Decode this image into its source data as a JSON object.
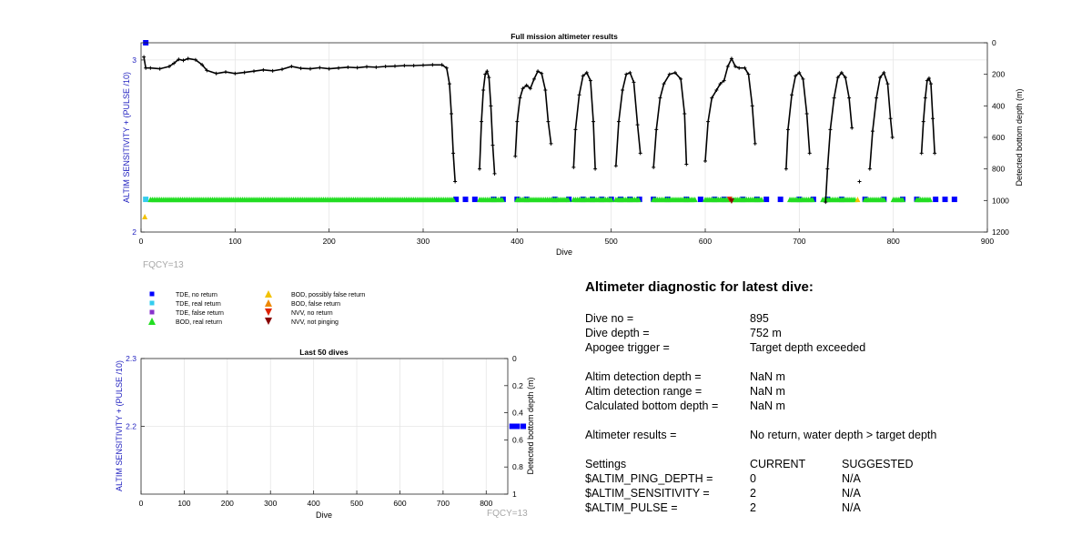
{
  "charts": {
    "main": {
      "title": "Full mission altimeter results",
      "xlabel": "Dive",
      "ylabel_left": "ALTIM SENSITIVITY + (PULSE /10)",
      "ylabel_right": "Detected bottom depth (m)",
      "xticks": [
        "0",
        "100",
        "200",
        "300",
        "400",
        "500",
        "600",
        "700",
        "800",
        "900"
      ],
      "yticks_left": [
        "2",
        "3"
      ],
      "yticks_right": [
        "0",
        "200",
        "400",
        "600",
        "800",
        "1000",
        "1200"
      ],
      "fqcy": "FQCY=13"
    },
    "last50": {
      "title": "Last 50 dives",
      "xlabel": "Dive",
      "ylabel_left": "ALTIM SENSITIVITY + (PULSE /10)",
      "ylabel_right": "Detected bottom depth (m)",
      "xticks": [
        "0",
        "100",
        "200",
        "300",
        "400",
        "500",
        "600",
        "700",
        "800"
      ],
      "yticks_left": [
        "2.2",
        "2.3"
      ],
      "yticks_right": [
        "0",
        "0.2",
        "0.4",
        "0.6",
        "0.8",
        "1"
      ],
      "fqcy": "FQCY=13"
    }
  },
  "legend": [
    {
      "label": "TDE, no return",
      "marker": "square",
      "color": "#0000ff"
    },
    {
      "label": "TDE, real return",
      "marker": "square",
      "color": "#33ccee"
    },
    {
      "label": "TDE, false return",
      "marker": "square",
      "color": "#8833cc"
    },
    {
      "label": "BOD, real return",
      "marker": "triangle-up",
      "color": "#22dd22"
    },
    {
      "label": "BOD, possibly false return",
      "marker": "triangle-up",
      "color": "#f2c200"
    },
    {
      "label": "BOD, false return",
      "marker": "triangle-up",
      "color": "#ee8800"
    },
    {
      "label": "NVV, no return",
      "marker": "triangle-down",
      "color": "#dd2200"
    },
    {
      "label": "NVV, not pinging",
      "marker": "triangle-down",
      "color": "#880000"
    }
  ],
  "chart_data": [
    {
      "type": "scatter",
      "title": "Full mission altimeter results",
      "xlabel": "Dive",
      "ylabel": "ALTIM SENSITIVITY + (PULSE /10)",
      "y2label": "Detected bottom depth (m)",
      "xlim": [
        0,
        900
      ],
      "ylim": [
        2,
        3.1
      ],
      "y2lim": [
        0,
        1200
      ],
      "y2_reversed": true,
      "grid": true,
      "series": [
        {
          "name": "TDE, no return",
          "axis": "left",
          "color": "#0000ff",
          "points": [
            [
              5,
              3.1
            ],
            [
              335,
              2.19
            ],
            [
              345,
              2.19
            ],
            [
              355,
              2.19
            ],
            [
              375,
              2.19
            ],
            [
              385,
              2.19
            ],
            [
              400,
              2.19
            ],
            [
              410,
              2.19
            ],
            [
              440,
              2.19
            ],
            [
              455,
              2.19
            ],
            [
              470,
              2.19
            ],
            [
              480,
              2.19
            ],
            [
              490,
              2.19
            ],
            [
              500,
              2.19
            ],
            [
              510,
              2.19
            ],
            [
              520,
              2.19
            ],
            [
              530,
              2.19
            ],
            [
              545,
              2.19
            ],
            [
              560,
              2.19
            ],
            [
              580,
              2.19
            ],
            [
              595,
              2.19
            ],
            [
              610,
              2.19
            ],
            [
              620,
              2.19
            ],
            [
              640,
              2.19
            ],
            [
              655,
              2.19
            ],
            [
              665,
              2.19
            ],
            [
              680,
              2.19
            ],
            [
              700,
              2.19
            ],
            [
              715,
              2.19
            ],
            [
              730,
              2.19
            ],
            [
              745,
              2.19
            ],
            [
              770,
              2.19
            ],
            [
              790,
              2.19
            ],
            [
              810,
              2.19
            ],
            [
              825,
              2.19
            ],
            [
              845,
              2.19
            ],
            [
              855,
              2.19
            ],
            [
              865,
              2.19
            ]
          ]
        },
        {
          "name": "TDE, real return",
          "axis": "left",
          "color": "#33ccee",
          "points": [
            [
              5,
              2.19
            ]
          ]
        },
        {
          "name": "BOD, real return",
          "axis": "left",
          "color": "#22dd22",
          "segments": [
            [
              10,
              332
            ],
            [
              360,
              385
            ],
            [
              400,
              455
            ],
            [
              460,
              500
            ],
            [
              505,
              530
            ],
            [
              545,
              590
            ],
            [
              600,
              660
            ],
            [
              690,
              715
            ],
            [
              725,
              760
            ],
            [
              770,
              790
            ],
            [
              800,
              810
            ],
            [
              825,
              840
            ]
          ]
        },
        {
          "name": "BOD, possibly false return",
          "axis": "left",
          "color": "#f2c200",
          "points": [
            [
              4,
              2.09
            ],
            [
              762,
              2.19
            ]
          ]
        },
        {
          "name": "NVV, no return",
          "axis": "left",
          "color": "#dd2200",
          "points": [
            [
              626,
              2.19
            ]
          ]
        },
        {
          "name": "NVV, not pinging",
          "axis": "left",
          "color": "#880000",
          "points": [
            [
              628,
              2.18
            ]
          ]
        },
        {
          "name": "Detected bottom depth",
          "axis": "right",
          "color": "#000000",
          "segments": [
            [
              [
                3,
                90
              ],
              [
                5,
                160
              ],
              [
                10,
                160
              ],
              [
                20,
                165
              ],
              [
                30,
                150
              ],
              [
                35,
                130
              ],
              [
                40,
                105
              ],
              [
                45,
                112
              ],
              [
                50,
                100
              ],
              [
                58,
                108
              ],
              [
                65,
                140
              ],
              [
                70,
                175
              ],
              [
                80,
                195
              ],
              [
                90,
                185
              ],
              [
                100,
                195
              ],
              [
                110,
                188
              ],
              [
                120,
                180
              ],
              [
                130,
                172
              ],
              [
                140,
                178
              ],
              [
                150,
                168
              ],
              [
                160,
                150
              ],
              [
                170,
                162
              ],
              [
                180,
                165
              ],
              [
                190,
                158
              ],
              [
                200,
                165
              ],
              [
                210,
                160
              ],
              [
                220,
                155
              ],
              [
                230,
                158
              ],
              [
                240,
                152
              ],
              [
                250,
                155
              ],
              [
                260,
                150
              ],
              [
                270,
                148
              ],
              [
                280,
                145
              ],
              [
                290,
                145
              ],
              [
                300,
                142
              ],
              [
                310,
                140
              ],
              [
                320,
                140
              ],
              [
                325,
                160
              ],
              [
                328,
                260
              ],
              [
                330,
                450
              ],
              [
                332,
                700
              ],
              [
                334,
                880
              ]
            ],
            [
              [
                360,
                800
              ],
              [
                362,
                500
              ],
              [
                364,
                300
              ],
              [
                366,
                200
              ],
              [
                368,
                180
              ],
              [
                370,
                220
              ],
              [
                372,
                400
              ],
              [
                374,
                650
              ],
              [
                376,
                830
              ]
            ],
            [
              [
                398,
                720
              ],
              [
                400,
                500
              ],
              [
                403,
                350
              ],
              [
                406,
                290
              ],
              [
                410,
                270
              ],
              [
                414,
                290
              ],
              [
                418,
                230
              ],
              [
                422,
                180
              ],
              [
                426,
                195
              ],
              [
                430,
                300
              ],
              [
                433,
                500
              ],
              [
                436,
                640
              ]
            ],
            [
              [
                460,
                790
              ],
              [
                462,
                550
              ],
              [
                466,
                330
              ],
              [
                470,
                210
              ],
              [
                474,
                190
              ],
              [
                478,
                240
              ],
              [
                481,
                500
              ],
              [
                483,
                800
              ]
            ],
            [
              [
                505,
                780
              ],
              [
                508,
                500
              ],
              [
                512,
                300
              ],
              [
                516,
                200
              ],
              [
                520,
                190
              ],
              [
                524,
                250
              ],
              [
                528,
                520
              ],
              [
                531,
                700
              ]
            ],
            [
              [
                545,
                790
              ],
              [
                548,
                550
              ],
              [
                552,
                350
              ],
              [
                556,
                260
              ],
              [
                562,
                200
              ],
              [
                568,
                190
              ],
              [
                574,
                230
              ],
              [
                578,
                450
              ],
              [
                580,
                770
              ]
            ],
            [
              [
                600,
                750
              ],
              [
                603,
                500
              ],
              [
                607,
                350
              ],
              [
                612,
                300
              ],
              [
                616,
                260
              ],
              [
                620,
                240
              ],
              [
                624,
                150
              ],
              [
                628,
                100
              ],
              [
                632,
                150
              ],
              [
                636,
                160
              ],
              [
                642,
                160
              ],
              [
                646,
                200
              ],
              [
                650,
                400
              ],
              [
                653,
                640
              ]
            ],
            [
              [
                686,
                800
              ],
              [
                688,
                550
              ],
              [
                692,
                330
              ],
              [
                696,
                210
              ],
              [
                700,
                190
              ],
              [
                704,
                230
              ],
              [
                708,
                450
              ],
              [
                711,
                700
              ]
            ],
            [
              [
                728,
                1010
              ],
              [
                730,
                800
              ],
              [
                733,
                550
              ],
              [
                737,
                350
              ],
              [
                741,
                220
              ],
              [
                745,
                190
              ],
              [
                749,
                220
              ],
              [
                753,
                350
              ],
              [
                756,
                540
              ]
            ],
            [
              [
                764,
                880
              ]
            ],
            [
              [
                775,
                800
              ],
              [
                778,
                560
              ],
              [
                782,
                350
              ],
              [
                786,
                220
              ],
              [
                790,
                190
              ],
              [
                794,
                260
              ],
              [
                797,
                480
              ],
              [
                799,
                600
              ]
            ],
            [
              [
                830,
                700
              ],
              [
                832,
                500
              ],
              [
                834,
                350
              ],
              [
                836,
                240
              ],
              [
                838,
                225
              ],
              [
                840,
                260
              ],
              [
                842,
                480
              ],
              [
                844,
                700
              ]
            ]
          ]
        }
      ]
    },
    {
      "type": "scatter",
      "title": "Last 50 dives",
      "xlabel": "Dive",
      "ylabel": "ALTIM SENSITIVITY + (PULSE /10)",
      "y2label": "Detected bottom depth (m)",
      "xlim": [
        0,
        850
      ],
      "ylim": [
        2.1,
        2.3
      ],
      "y2lim": [
        0,
        1
      ],
      "y2_reversed": true,
      "grid": true,
      "series": [
        {
          "name": "TDE, no return",
          "axis": "left",
          "color": "#0000ff",
          "points": [
            [
              860,
              2.2
            ],
            [
              866,
              2.2
            ],
            [
              872,
              2.2
            ],
            [
              886,
              2.2
            ]
          ]
        }
      ]
    }
  ],
  "diagnostic": {
    "heading": "Altimeter diagnostic for latest dive:",
    "dive_no": {
      "label": "Dive no =",
      "value": "895"
    },
    "dive_depth": {
      "label": "Dive depth =",
      "value": "752 m"
    },
    "apogee": {
      "label": "Apogee trigger =",
      "value": "Target depth exceeded"
    },
    "detect_depth": {
      "label": "Altim detection depth =",
      "value": "NaN m"
    },
    "detect_range": {
      "label": "Altim detection range =",
      "value": "NaN m"
    },
    "calc_depth": {
      "label": "Calculated bottom depth =",
      "value": "NaN m"
    },
    "results": {
      "label": "Altimeter results =",
      "value": "No return, water depth > target depth"
    },
    "settings_header": {
      "label": "Settings",
      "current": "CURRENT",
      "suggested": "SUGGESTED"
    },
    "settings": [
      {
        "name": "$ALTIM_PING_DEPTH =",
        "current": "0",
        "suggested": "N/A"
      },
      {
        "name": "$ALTIM_SENSITIVITY =",
        "current": "2",
        "suggested": "N/A"
      },
      {
        "name": "$ALTIM_PULSE =",
        "current": "2",
        "suggested": "N/A"
      }
    ]
  }
}
